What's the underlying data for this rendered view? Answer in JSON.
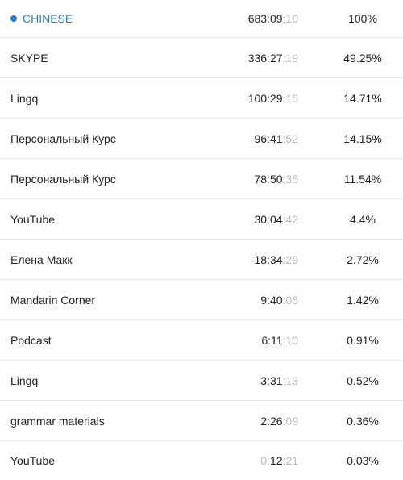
{
  "project": {
    "name": "CHINESE",
    "time_main": "683:09",
    "time_sec": ":10",
    "percent": "100%",
    "accent_color": "#2a7ec4"
  },
  "rows": [
    {
      "name": "SKYPE",
      "time_main": "336:27",
      "time_sec": ":19",
      "percent": "49.25%"
    },
    {
      "name": "Lingq",
      "time_main": "100:29",
      "time_sec": ":15",
      "percent": "14.71%"
    },
    {
      "name": "Персональный Курс",
      "time_main": "96:41",
      "time_sec": ":52",
      "percent": "14.15%"
    },
    {
      "name": "Персональный Курс",
      "time_main": "78:50",
      "time_sec": ":35",
      "percent": "11.54%"
    },
    {
      "name": "YouTube",
      "time_main": "30:04",
      "time_sec": ":42",
      "percent": "4.4%"
    },
    {
      "name": "Елена Макк",
      "time_main": "18:34",
      "time_sec": ":29",
      "percent": "2.72%"
    },
    {
      "name": "Mandarin Corner",
      "time_main": "9:40",
      "time_sec": ":05",
      "percent": "1.42%"
    },
    {
      "name": "Podcast",
      "time_main": "6:11",
      "time_sec": ":10",
      "percent": "0.91%"
    },
    {
      "name": "Lingq",
      "time_main": "3:31",
      "time_sec": ":13",
      "percent": "0.52%"
    },
    {
      "name": "grammar materials",
      "time_main": "2:26",
      "time_sec": ":09",
      "percent": "0.36%"
    },
    {
      "name": "YouTube",
      "time_dim_prefix": "0:",
      "time_main": "12",
      "time_sec": ":21",
      "percent": "0.03%"
    }
  ]
}
